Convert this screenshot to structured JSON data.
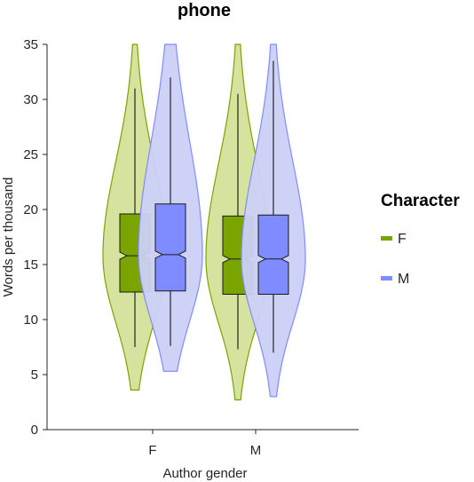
{
  "chart_data": {
    "type": "violin",
    "title": "phone",
    "xlabel": "Author gender",
    "ylabel": "Words per thousand",
    "categories": [
      "F",
      "M"
    ],
    "ylim": [
      0,
      35
    ],
    "yticks": [
      0,
      5,
      10,
      15,
      20,
      25,
      30,
      35
    ],
    "grid": false,
    "legend": {
      "title": "Character",
      "position": "right",
      "entries": [
        "F",
        "M"
      ]
    },
    "series": [
      {
        "name": "F",
        "color": "#7aa400",
        "fill": "#d3e29a",
        "stats": [
          {
            "category": "F",
            "q1": 12.5,
            "median": 15.8,
            "q3": 19.6,
            "whisker_low": 7.5,
            "whisker_high": 31.0,
            "min": 3.6,
            "max": 35
          },
          {
            "category": "M",
            "q1": 12.3,
            "median": 15.5,
            "q3": 19.4,
            "whisker_low": 7.3,
            "whisker_high": 30.5,
            "min": 2.7,
            "max": 35
          }
        ]
      },
      {
        "name": "M",
        "color": "#7f8cff",
        "fill": "#ccd0f7",
        "stats": [
          {
            "category": "F",
            "q1": 12.6,
            "median": 15.9,
            "q3": 20.5,
            "whisker_low": 7.6,
            "whisker_high": 32.0,
            "min": 5.3,
            "max": 35
          },
          {
            "category": "M",
            "q1": 12.3,
            "median": 15.5,
            "q3": 19.5,
            "whisker_low": 7.0,
            "whisker_high": 33.5,
            "min": 3.0,
            "max": 35
          }
        ]
      }
    ]
  }
}
